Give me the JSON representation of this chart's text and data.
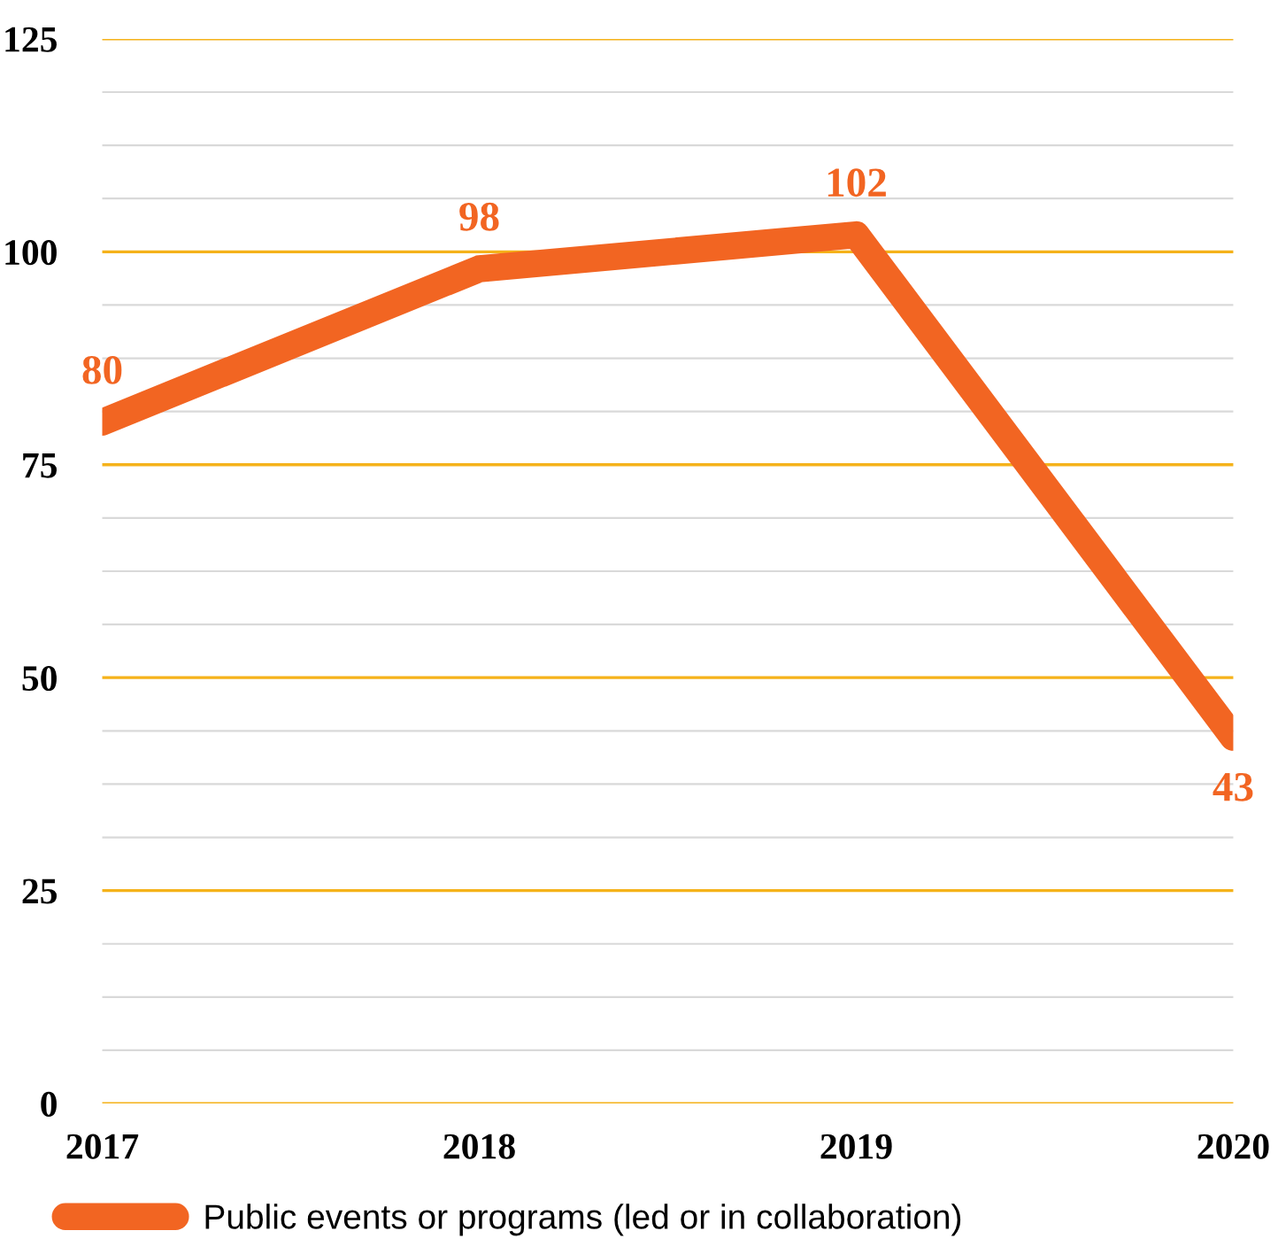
{
  "chart_data": {
    "type": "line",
    "categories": [
      "2017",
      "2018",
      "2019",
      "2020"
    ],
    "series": [
      {
        "name": "Public events or programs (led or in collaboration)",
        "color": "#f26522",
        "values": [
          80,
          98,
          102,
          43
        ]
      }
    ],
    "ylim": [
      0,
      125
    ],
    "yticks": [
      0,
      {
        "value": 6.25,
        "label": null
      },
      {
        "value": 12.5,
        "label": null
      },
      {
        "value": 18.75,
        "label": null
      },
      25,
      {
        "value": 31.25,
        "label": null
      },
      {
        "value": 37.5,
        "label": null
      },
      {
        "value": 43.75,
        "label": null
      },
      50,
      {
        "value": 56.25,
        "label": null
      },
      {
        "value": 62.5,
        "label": null
      },
      {
        "value": 68.75,
        "label": null
      },
      75,
      {
        "value": 81.25,
        "label": null
      },
      {
        "value": 87.5,
        "label": null
      },
      {
        "value": 93.75,
        "label": null
      },
      100,
      {
        "value": 106.25,
        "label": null
      },
      {
        "value": 112.5,
        "label": null
      },
      {
        "value": 118.75,
        "label": null
      },
      125
    ],
    "grid": "y",
    "data_labels": true,
    "legend": "bottom left",
    "marker": "none",
    "line_style": "solid"
  }
}
